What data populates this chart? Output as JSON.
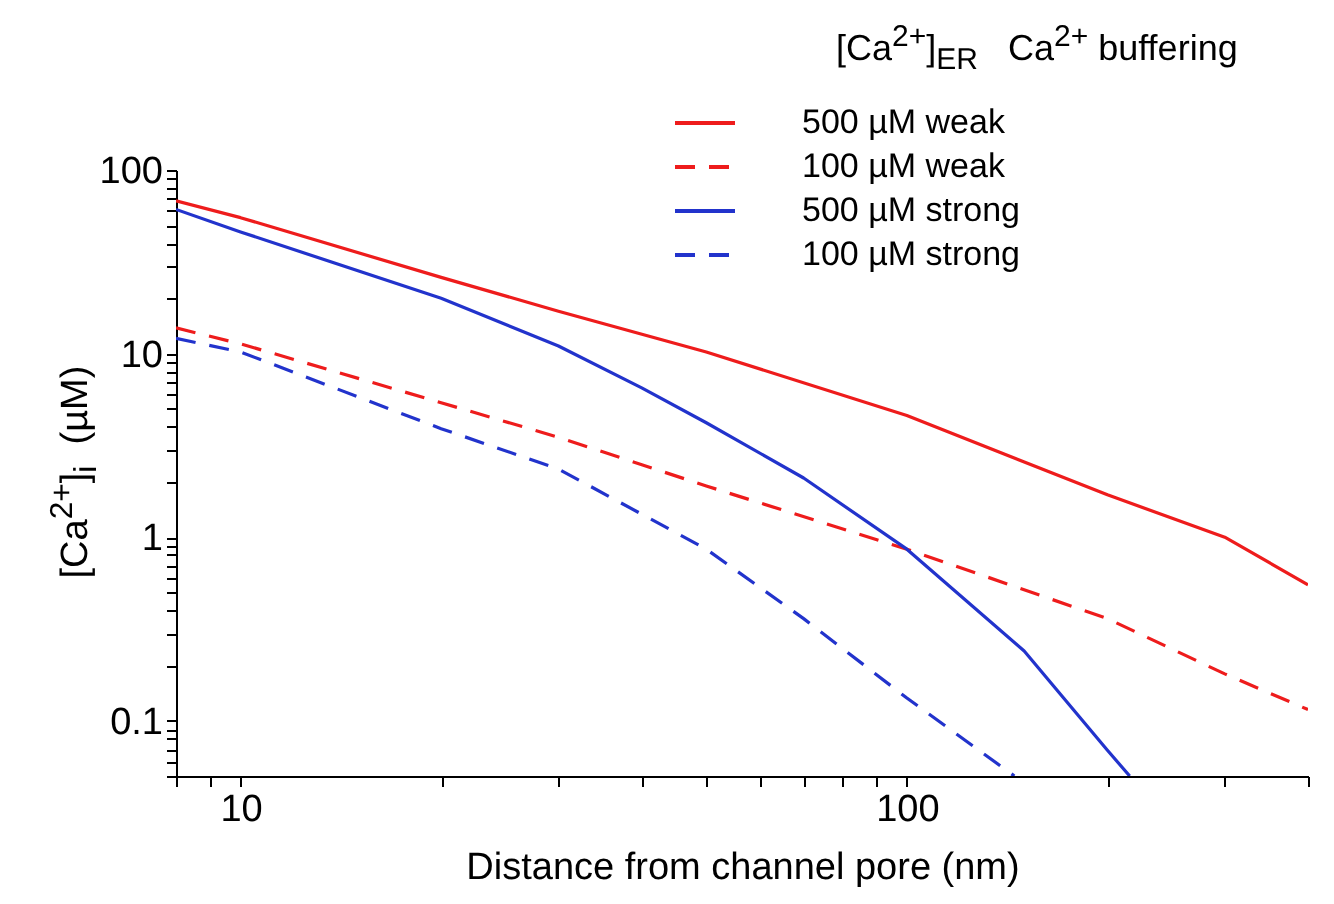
{
  "chart_data": {
    "type": "line",
    "xlabel": "Distance from channel pore (nm)",
    "ylabel": "[Ca$^{2+}$]$_{i}$  (µM)",
    "legend_title": "[Ca$^{2+}$]$_{ER}$   Ca$^{2+}$ buffering",
    "log": "xy",
    "grid": false,
    "legend": "top right",
    "xlim": [
      8,
      400
    ],
    "ylim": [
      0.05,
      100
    ],
    "xticks": [
      {
        "value": 8,
        "label": null
      },
      {
        "value": 9,
        "label": null
      },
      10,
      {
        "value": 20,
        "label": null
      },
      {
        "value": 30,
        "label": null
      },
      {
        "value": 40,
        "label": null
      },
      {
        "value": 50,
        "label": null
      },
      {
        "value": 60,
        "label": null
      },
      {
        "value": 70,
        "label": null
      },
      {
        "value": 80,
        "label": null
      },
      {
        "value": 90,
        "label": null
      },
      100,
      {
        "value": 200,
        "label": null
      },
      {
        "value": 300,
        "label": null
      },
      {
        "value": 400,
        "label": null
      }
    ],
    "yticks": [
      {
        "value": 0.05,
        "label": null
      },
      {
        "value": 0.06,
        "label": null
      },
      {
        "value": 0.07,
        "label": null
      },
      {
        "value": 0.08,
        "label": null
      },
      {
        "value": 0.09,
        "label": null
      },
      0.1,
      {
        "value": 0.2,
        "label": null
      },
      {
        "value": 0.3,
        "label": null
      },
      {
        "value": 0.4,
        "label": null
      },
      {
        "value": 0.5,
        "label": null
      },
      {
        "value": 0.6,
        "label": null
      },
      {
        "value": 0.7,
        "label": null
      },
      {
        "value": 0.8,
        "label": null
      },
      {
        "value": 0.9,
        "label": null
      },
      1,
      {
        "value": 2,
        "label": null
      },
      {
        "value": 3,
        "label": null
      },
      {
        "value": 4,
        "label": null
      },
      {
        "value": 5,
        "label": null
      },
      {
        "value": 6,
        "label": null
      },
      {
        "value": 7,
        "label": null
      },
      {
        "value": 8,
        "label": null
      },
      {
        "value": 9,
        "label": null
      },
      10,
      {
        "value": 20,
        "label": null
      },
      {
        "value": 30,
        "label": null
      },
      {
        "value": 40,
        "label": null
      },
      {
        "value": 50,
        "label": null
      },
      {
        "value": 60,
        "label": null
      },
      {
        "value": 70,
        "label": null
      },
      {
        "value": 80,
        "label": null
      },
      {
        "value": 90,
        "label": null
      },
      100
    ],
    "series": [
      {
        "name": "500 µM weak",
        "color": "#ee1c1c",
        "line_style": "solid",
        "x": [
          8,
          10,
          20,
          30,
          50,
          100,
          200,
          300,
          400
        ],
        "values": [
          68,
          55,
          26,
          17,
          10.2,
          4.6,
          1.7,
          1.0,
          0.55
        ]
      },
      {
        "name": "100 µM weak",
        "color": "#ee1c1c",
        "line_style": "dashed",
        "x": [
          8,
          10,
          20,
          30,
          50,
          100,
          200,
          300,
          400
        ],
        "values": [
          13.8,
          11.3,
          5.4,
          3.5,
          1.9,
          0.86,
          0.36,
          0.18,
          0.115
        ]
      },
      {
        "name": "500 µM strong",
        "color": "#2233cc",
        "line_style": "solid",
        "x": [
          8,
          10,
          20,
          30,
          40,
          50,
          70,
          100,
          150,
          200,
          216
        ],
        "values": [
          61,
          46,
          20,
          11,
          6.5,
          4.2,
          2.1,
          0.86,
          0.24,
          0.069,
          0.05
        ]
      },
      {
        "name": "100 µM strong",
        "color": "#2233cc",
        "line_style": "dashed",
        "x": [
          8,
          10,
          20,
          30,
          50,
          70,
          100,
          145
        ],
        "values": [
          12.1,
          10.2,
          3.9,
          2.35,
          0.86,
          0.36,
          0.133,
          0.05
        ]
      }
    ]
  }
}
